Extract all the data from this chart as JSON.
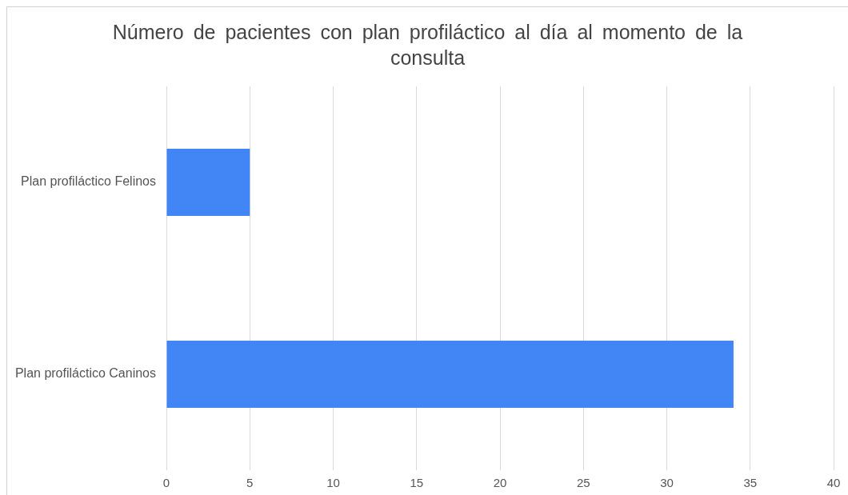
{
  "chart_data": {
    "type": "bar",
    "title": "Número de pacientes con plan profiláctico al día al momento de la consulta",
    "orientation": "horizontal",
    "categories": [
      "Plan profiláctico Felinos",
      "Plan profiláctico Caninos"
    ],
    "values": [
      5,
      34
    ],
    "color": "#4285f4",
    "xlim": [
      0,
      40
    ],
    "xticks": [
      0,
      5,
      10,
      15,
      20,
      25,
      30,
      35,
      40
    ],
    "grid": "x"
  }
}
